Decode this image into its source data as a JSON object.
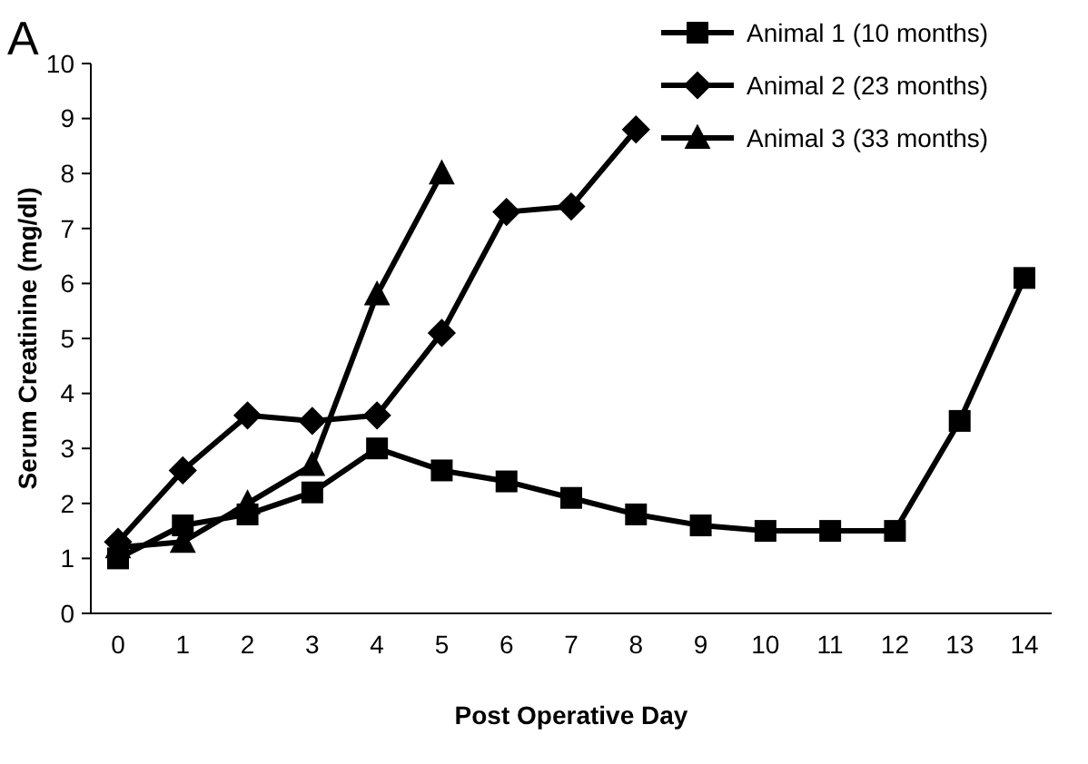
{
  "chart_data": {
    "type": "line",
    "xlabel": "Post Operative Day",
    "ylabel": "Serum Creatinine (mg/dl)",
    "annotations": [
      "A"
    ],
    "categories": [
      "0",
      "1",
      "2",
      "3",
      "4",
      "5",
      "6",
      "7",
      "8",
      "9",
      "10",
      "11",
      "12",
      "13",
      "14"
    ],
    "ylim": [
      0,
      10
    ],
    "yticks": [
      0,
      1,
      2,
      3,
      4,
      5,
      6,
      7,
      8,
      9,
      10
    ],
    "grid": false,
    "legend": "top right",
    "line_style": "solid",
    "series": [
      {
        "name": "Animal 1 (10 months)",
        "color": "#000000",
        "marker": "square",
        "values": [
          1.0,
          1.6,
          1.8,
          2.2,
          3.0,
          2.6,
          2.4,
          2.1,
          1.8,
          1.6,
          1.5,
          1.5,
          1.5,
          3.5,
          6.1
        ]
      },
      {
        "name": "Animal 2 (23 months)",
        "color": "#000000",
        "marker": "diamond",
        "values": [
          1.3,
          2.6,
          3.6,
          3.5,
          3.6,
          5.1,
          7.3,
          7.4,
          8.8,
          null,
          null,
          null,
          null,
          null,
          null
        ]
      },
      {
        "name": "Animal 3 (33 months)",
        "color": "#000000",
        "marker": "triangle",
        "values": [
          1.2,
          1.3,
          2.0,
          2.7,
          5.8,
          8.0,
          null,
          null,
          null,
          null,
          null,
          null,
          null,
          null,
          null
        ]
      }
    ]
  }
}
